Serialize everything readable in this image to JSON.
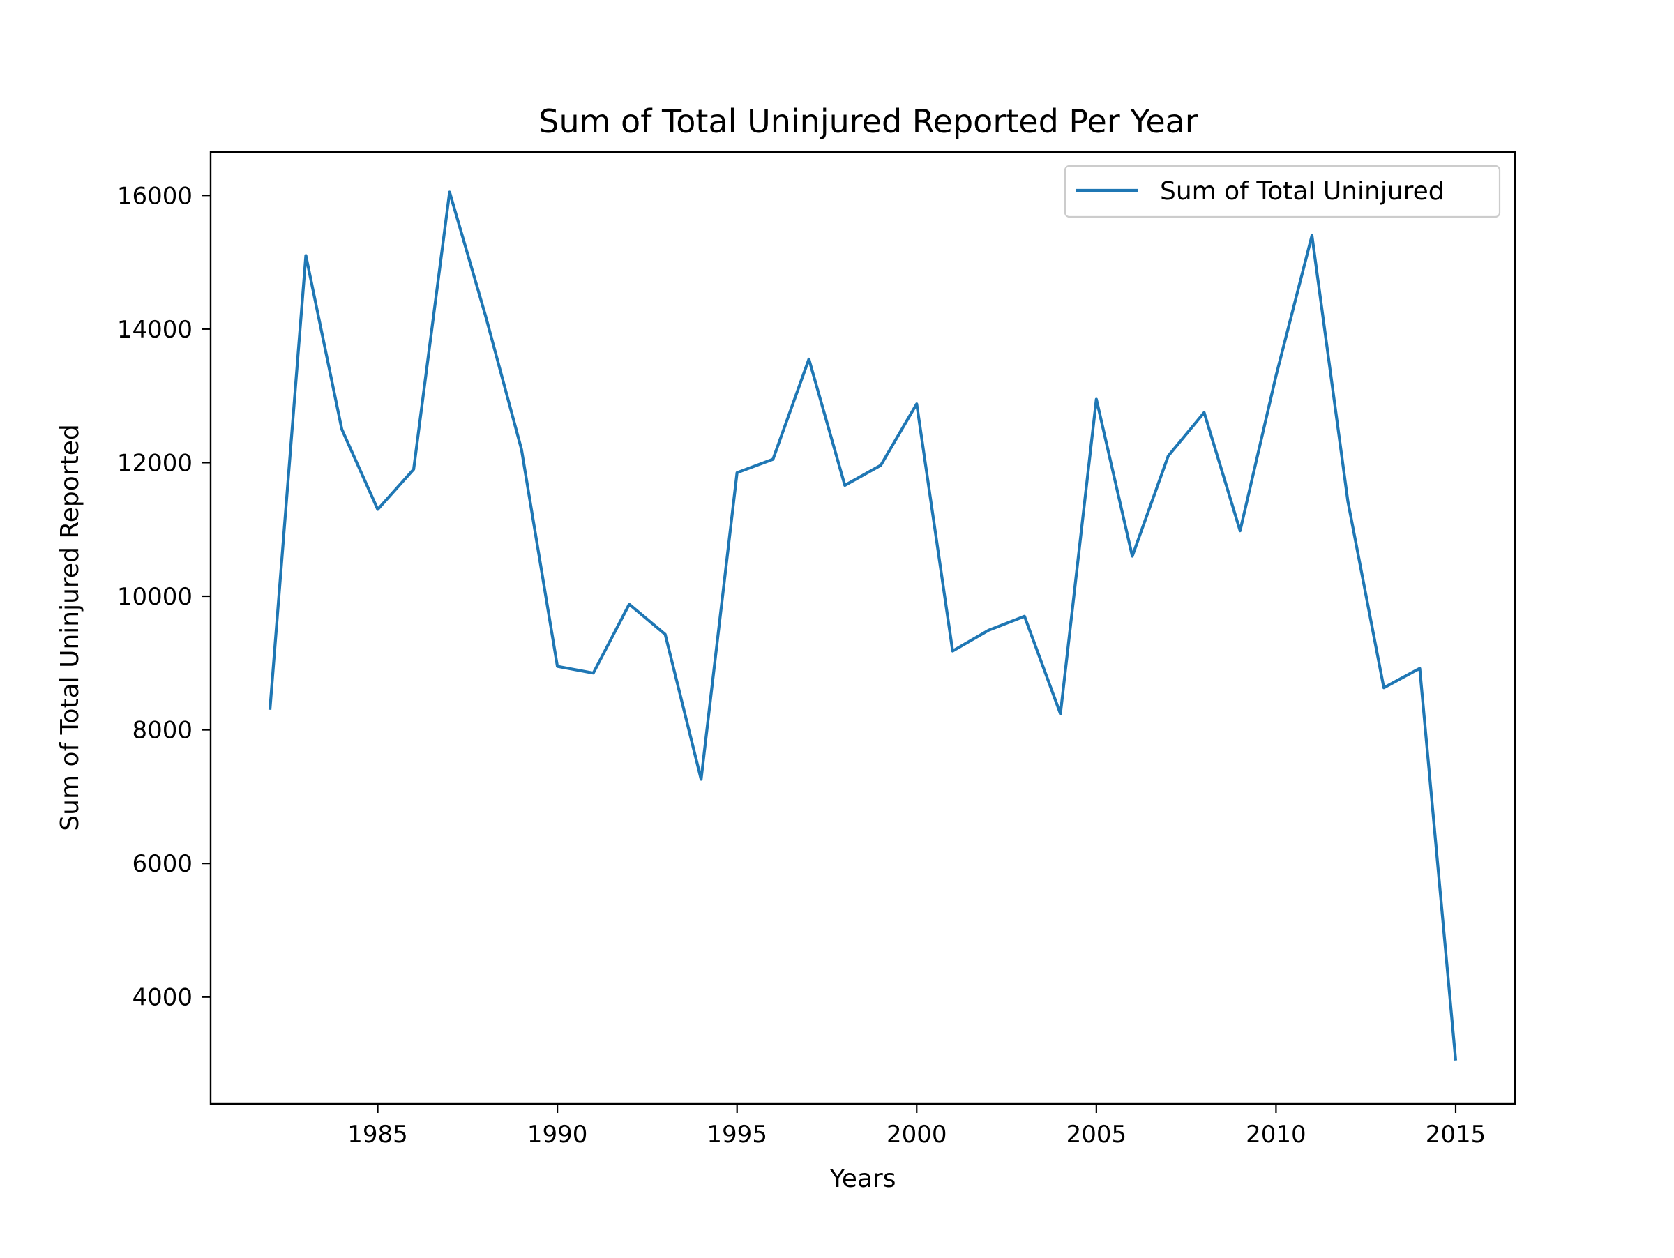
{
  "chart_data": {
    "type": "line",
    "title": "Sum of Total Uninjured Reported Per Year",
    "xlabel": "Years",
    "ylabel": "Sum of Total Uninjured Reported",
    "xlim": [
      1980.35,
      2016.65
    ],
    "ylim": [
      2400,
      16650
    ],
    "xticks": [
      1985,
      1990,
      1995,
      2000,
      2005,
      2010,
      2015
    ],
    "yticks": [
      4000,
      6000,
      8000,
      10000,
      12000,
      14000,
      16000
    ],
    "grid": false,
    "legend_position": "top-right",
    "series": [
      {
        "name": "Sum of Total Uninjured",
        "color": "#1f77b4",
        "x": [
          1982,
          1983,
          1984,
          1985,
          1986,
          1987,
          1988,
          1989,
          1990,
          1991,
          1992,
          1993,
          1994,
          1995,
          1996,
          1997,
          1998,
          1999,
          2000,
          2001,
          2002,
          2003,
          2004,
          2005,
          2006,
          2007,
          2008,
          2009,
          2010,
          2011,
          2012,
          2013,
          2014,
          2015
        ],
        "values": [
          8300,
          15100,
          12500,
          11300,
          11900,
          16050,
          14200,
          12200,
          8950,
          8850,
          9880,
          9430,
          7260,
          11850,
          12050,
          13550,
          11660,
          11960,
          12880,
          9180,
          9490,
          9700,
          8240,
          12950,
          10600,
          12100,
          12750,
          10980,
          13300,
          15400,
          11420,
          8630,
          8920,
          3050
        ]
      }
    ]
  }
}
